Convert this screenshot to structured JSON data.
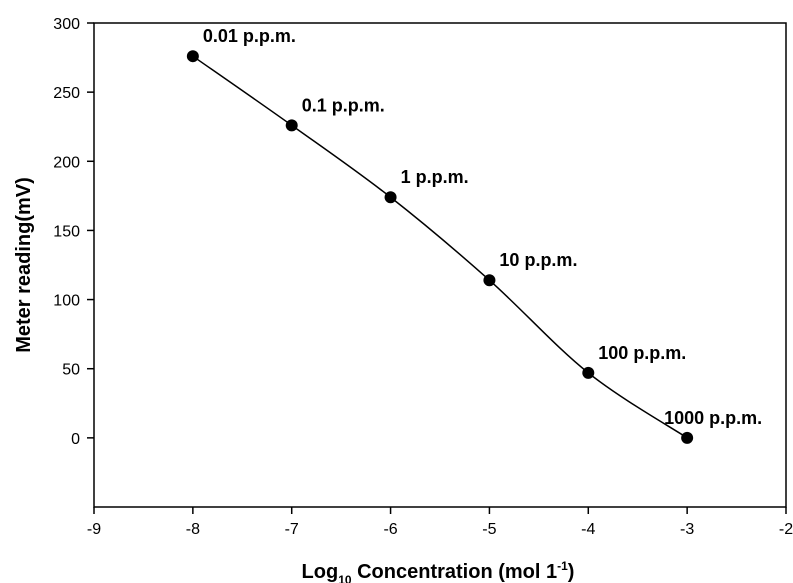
{
  "chart_data": {
    "type": "line",
    "title": "",
    "xlabel": {
      "prefix": "Log",
      "subscript": "10",
      "main": " Concentration (mol 1",
      "superscript": "-1",
      "suffix": ")"
    },
    "ylabel": "Meter reading(mV)",
    "xlim": [
      -9,
      -2
    ],
    "ylim": [
      -50,
      300
    ],
    "x_ticks": [
      -9,
      -8,
      -7,
      -6,
      -5,
      -4,
      -3,
      -2
    ],
    "x_tick_labels": [
      "-9",
      "-8",
      "-7",
      "-6",
      "-5",
      "-4",
      "-3",
      "-2"
    ],
    "y_ticks": [
      0,
      50,
      100,
      150,
      200,
      250,
      300
    ],
    "y_tick_labels": [
      "0",
      "50",
      "100",
      "150",
      "200",
      "250",
      "300"
    ],
    "grid": false,
    "series": [
      {
        "x": [
          -8,
          -7,
          -6,
          -5,
          -4,
          -3
        ],
        "y": [
          276,
          226,
          174,
          114,
          47,
          0
        ],
        "point_labels": [
          "0.01 p.p.m.",
          "0.1 p.p.m.",
          "1 p.p.m.",
          "10 p.p.m.",
          "100 p.p.m.",
          "1000 p.p.m."
        ],
        "color": "#000000",
        "marker": "circle",
        "smooth": true
      }
    ]
  }
}
